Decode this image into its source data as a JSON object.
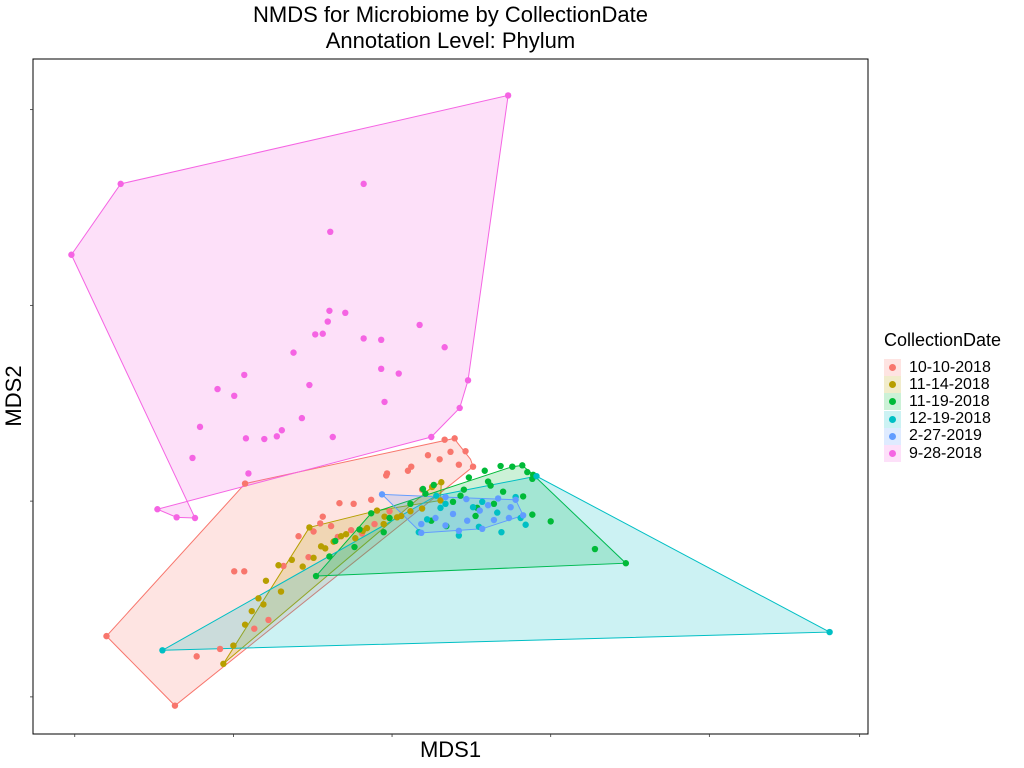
{
  "chart_data": {
    "type": "scatter",
    "title": "NMDS for Microbiome by CollectionDate",
    "subtitle": "Annotation Level: Phylum",
    "xlabel": "MDS1",
    "ylabel": "MDS2",
    "xlim": [
      0,
      1000
    ],
    "ylim": [
      0,
      1000
    ],
    "grid": false,
    "legend_position": "right",
    "legend_title": "CollectionDate",
    "series": [
      {
        "name": "10-10-2018",
        "color": "#F8766D",
        "hull": [
          [
            88,
            145
          ],
          [
            170,
            42
          ],
          [
            527,
            396
          ],
          [
            524,
            407
          ],
          [
            508,
            432
          ],
          [
            505,
            438
          ],
          [
            254,
            371
          ]
        ],
        "points": [
          [
            170,
            42
          ],
          [
            88,
            145
          ],
          [
            196,
            115
          ],
          [
            241,
            241
          ],
          [
            265,
            156
          ],
          [
            282,
            169
          ],
          [
            330,
            262
          ],
          [
            344,
            312
          ],
          [
            365,
            292
          ],
          [
            381,
            302
          ],
          [
            394,
            297
          ],
          [
            409,
            311
          ],
          [
            424,
            386
          ],
          [
            449,
            390
          ],
          [
            473,
            413
          ],
          [
            493,
            436
          ],
          [
            505,
            438
          ],
          [
            518,
            419
          ],
          [
            510,
            399
          ],
          [
            453,
            396
          ],
          [
            423,
            383
          ],
          [
            405,
            347
          ],
          [
            384,
            341
          ],
          [
            367,
            342
          ],
          [
            357,
            308
          ],
          [
            347,
            322
          ],
          [
            336,
            300
          ],
          [
            318,
            293
          ],
          [
            300,
            249
          ],
          [
            253,
            241
          ],
          [
            224,
            126
          ],
          [
            254,
            371
          ],
          [
            500,
            418
          ],
          [
            487,
            407
          ],
          [
            427,
            330
          ],
          [
            466,
            362
          ],
          [
            527,
            396
          ]
        ]
      },
      {
        "name": "11-14-2018",
        "color": "#B79F00",
        "hull": [
          [
            228,
            104
          ],
          [
            478,
            366
          ],
          [
            489,
            373
          ],
          [
            488,
            346
          ],
          [
            412,
            331
          ],
          [
            331,
            306
          ]
        ],
        "points": [
          [
            228,
            104
          ],
          [
            240,
            131
          ],
          [
            254,
            162
          ],
          [
            262,
            182
          ],
          [
            270,
            201
          ],
          [
            279,
            227
          ],
          [
            294,
            250
          ],
          [
            331,
            306
          ],
          [
            345,
            278
          ],
          [
            369,
            293
          ],
          [
            386,
            290
          ],
          [
            400,
            305
          ],
          [
            420,
            311
          ],
          [
            436,
            321
          ],
          [
            452,
            330
          ],
          [
            478,
            366
          ],
          [
            489,
            373
          ],
          [
            488,
            346
          ],
          [
            412,
            331
          ],
          [
            395,
            301
          ],
          [
            375,
            296
          ],
          [
            360,
            285
          ],
          [
            336,
            261
          ],
          [
            323,
            248
          ],
          [
            297,
            211
          ],
          [
            276,
            192
          ],
          [
            310,
            258
          ],
          [
            350,
            275
          ],
          [
            421,
            322
          ],
          [
            441,
            323
          ],
          [
            466,
            334
          ]
        ]
      },
      {
        "name": "11-19-2018",
        "color": "#00BA38",
        "hull": [
          [
            339,
            234
          ],
          [
            710,
            253
          ],
          [
            599,
            384
          ],
          [
            586,
            398
          ],
          [
            574,
            396
          ],
          [
            405,
            327
          ]
        ],
        "points": [
          [
            339,
            234
          ],
          [
            405,
            327
          ],
          [
            467,
            363
          ],
          [
            541,
            390
          ],
          [
            560,
            397
          ],
          [
            574,
            396
          ],
          [
            586,
            398
          ],
          [
            592,
            388
          ],
          [
            598,
            378
          ],
          [
            599,
            384
          ],
          [
            710,
            253
          ],
          [
            673,
            274
          ],
          [
            620,
            315
          ],
          [
            598,
            325
          ],
          [
            552,
            341
          ],
          [
            512,
            353
          ],
          [
            480,
            369
          ],
          [
            503,
            344
          ],
          [
            532,
            335
          ],
          [
            563,
            359
          ],
          [
            587,
            352
          ],
          [
            548,
            368
          ],
          [
            516,
            362
          ],
          [
            470,
            356
          ],
          [
            452,
            341
          ],
          [
            427,
            320
          ],
          [
            391,
            303
          ],
          [
            362,
            286
          ],
          [
            355,
            263
          ],
          [
            385,
            277
          ],
          [
            420,
            299
          ],
          [
            477,
            316
          ],
          [
            495,
            308
          ],
          [
            530,
            323
          ],
          [
            545,
            374
          ],
          [
            522,
            380
          ]
        ]
      },
      {
        "name": "12-19-2018",
        "color": "#00BFC4",
        "hull": [
          [
            155,
            124
          ],
          [
            954,
            151
          ],
          [
            603,
            382
          ],
          [
            483,
            353
          ]
        ],
        "points": [
          [
            155,
            124
          ],
          [
            954,
            151
          ],
          [
            603,
            382
          ],
          [
            483,
            353
          ],
          [
            462,
            299
          ],
          [
            472,
            318
          ],
          [
            494,
            341
          ],
          [
            527,
            336
          ],
          [
            556,
            328
          ],
          [
            584,
            320
          ],
          [
            590,
            310
          ],
          [
            561,
            299
          ],
          [
            534,
            307
          ],
          [
            510,
            294
          ],
          [
            488,
            335
          ],
          [
            538,
            344
          ],
          [
            578,
            351
          ]
        ]
      },
      {
        "name": "2-27-2019",
        "color": "#619CFF",
        "hull": [
          [
            418,
            355
          ],
          [
            465,
            298
          ],
          [
            538,
            304
          ],
          [
            587,
            324
          ],
          [
            578,
            347
          ],
          [
            494,
            351
          ]
        ],
        "points": [
          [
            418,
            355
          ],
          [
            465,
            298
          ],
          [
            538,
            304
          ],
          [
            587,
            324
          ],
          [
            578,
            347
          ],
          [
            494,
            351
          ],
          [
            503,
            326
          ],
          [
            520,
            316
          ],
          [
            535,
            331
          ],
          [
            552,
            317
          ],
          [
            570,
            320
          ],
          [
            482,
            320
          ],
          [
            519,
            348
          ],
          [
            557,
            349
          ],
          [
            465,
            311
          ],
          [
            494,
            309
          ],
          [
            510,
            301
          ],
          [
            545,
            339
          ],
          [
            572,
            336
          ]
        ]
      },
      {
        "name": "9-28-2018",
        "color": "#F564E3",
        "hull": [
          [
            569,
            946
          ],
          [
            521,
            524
          ],
          [
            511,
            483
          ],
          [
            477,
            440
          ],
          [
            149,
            333
          ],
          [
            172,
            321
          ],
          [
            194,
            320
          ],
          [
            46,
            710
          ],
          [
            105,
            815
          ]
        ],
        "points": [
          [
            569,
            946
          ],
          [
            46,
            710
          ],
          [
            105,
            815
          ],
          [
            149,
            333
          ],
          [
            172,
            321
          ],
          [
            194,
            320
          ],
          [
            477,
            440
          ],
          [
            521,
            524
          ],
          [
            511,
            483
          ],
          [
            396,
            815
          ],
          [
            356,
            744
          ],
          [
            374,
            624
          ],
          [
            396,
            586
          ],
          [
            417,
            541
          ],
          [
            355,
            627
          ],
          [
            353,
            611
          ],
          [
            347,
            593
          ],
          [
            338,
            592
          ],
          [
            312,
            565
          ],
          [
            331,
            517
          ],
          [
            322,
            468
          ],
          [
            253,
            532
          ],
          [
            221,
            511
          ],
          [
            200,
            455
          ],
          [
            191,
            409
          ],
          [
            241,
            501
          ],
          [
            255,
            438
          ],
          [
            277,
            437
          ],
          [
            298,
            450
          ],
          [
            292,
            441
          ],
          [
            359,
            440
          ],
          [
            421,
            492
          ],
          [
            438,
            534
          ],
          [
            417,
            584
          ],
          [
            463,
            606
          ],
          [
            493,
            573
          ],
          [
            258,
            386
          ]
        ]
      }
    ]
  }
}
